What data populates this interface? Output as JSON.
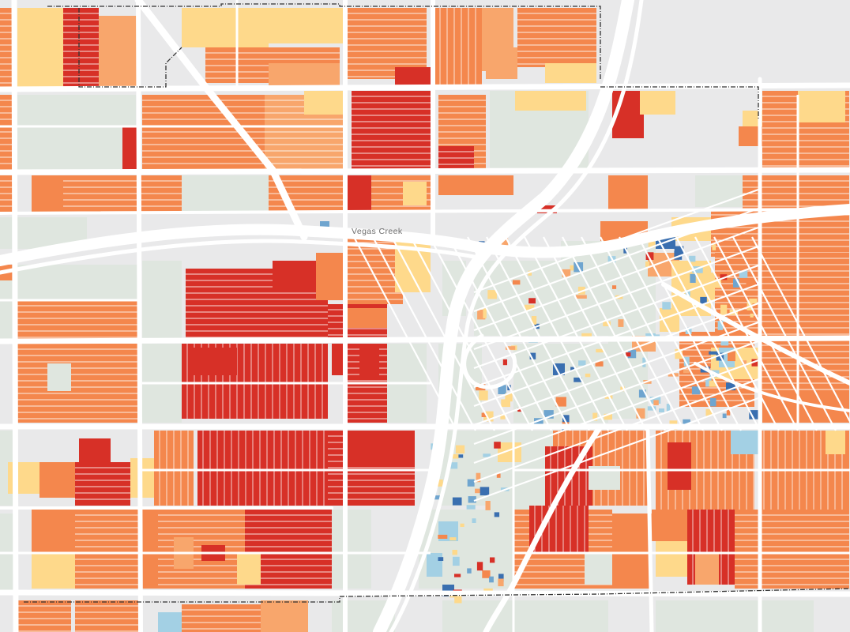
{
  "map": {
    "type": "choropleth parcel map",
    "palette": {
      "background": "#e9e9ea",
      "road": "#ffffff",
      "boundary": "#333333",
      "dark_red": "#d73027",
      "red": "#ea4a2c",
      "orange": "#f4874d",
      "light_orange": "#f8a66c",
      "yellow": "#fed98b",
      "light_blue": "#a3d0e4",
      "mid_blue": "#6fa5cf",
      "dark_blue": "#3a6fb0",
      "park": "#dfe6df"
    },
    "labels": {
      "creek": "Vegas Creek"
    }
  }
}
